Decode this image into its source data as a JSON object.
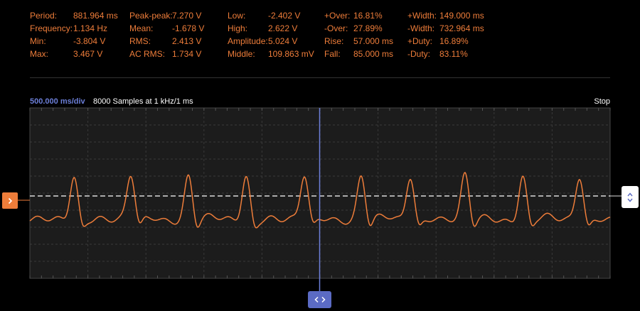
{
  "measurements": {
    "col1": [
      {
        "label": "Period:",
        "value": "881.964 ms"
      },
      {
        "label": "Frequency:",
        "value": "1.134 Hz"
      },
      {
        "label": "Min:",
        "value": "-3.804 V"
      },
      {
        "label": "Max:",
        "value": "3.467 V"
      }
    ],
    "col2": [
      {
        "label": "Peak-peak:",
        "value": "7.270 V"
      },
      {
        "label": "Mean:",
        "value": "-1.678 V"
      },
      {
        "label": "RMS:",
        "value": "2.413 V"
      },
      {
        "label": "AC RMS:",
        "value": "1.734 V"
      }
    ],
    "col3": [
      {
        "label": "Low:",
        "value": "-2.402 V"
      },
      {
        "label": "High:",
        "value": "2.622 V"
      },
      {
        "label": "Amplitude:",
        "value": "5.024 V"
      },
      {
        "label": "Middle:",
        "value": "109.863 mV"
      }
    ],
    "col4": [
      {
        "label": "+Over:",
        "value": "16.81%"
      },
      {
        "label": "-Over:",
        "value": "27.89%"
      },
      {
        "label": "Rise:",
        "value": "57.000 ms"
      },
      {
        "label": "Fall:",
        "value": "85.000 ms"
      }
    ],
    "col5": [
      {
        "label": "+Width:",
        "value": "149.000 ms"
      },
      {
        "label": "-Width:",
        "value": "732.964 ms"
      },
      {
        "label": "+Duty:",
        "value": "16.89%"
      },
      {
        "label": "-Duty:",
        "value": "83.11%"
      }
    ]
  },
  "header": {
    "timebase": "500.000 ms/div",
    "samples": "8000 Samples at 1 kHz/1 ms",
    "status": "Stop"
  },
  "colors": {
    "trace": "#ee7d3a",
    "cursor": "#6c7fd8",
    "grid_bg": "#1c1c1c",
    "grid_line": "#3a3a3a"
  },
  "icons": {
    "trigger_left": "chevron-right-icon",
    "trigger_right_up": "chevron-up-icon",
    "trigger_right_down": "chevron-down-icon",
    "cursor_handle": "chevron-left-right-icon"
  }
}
